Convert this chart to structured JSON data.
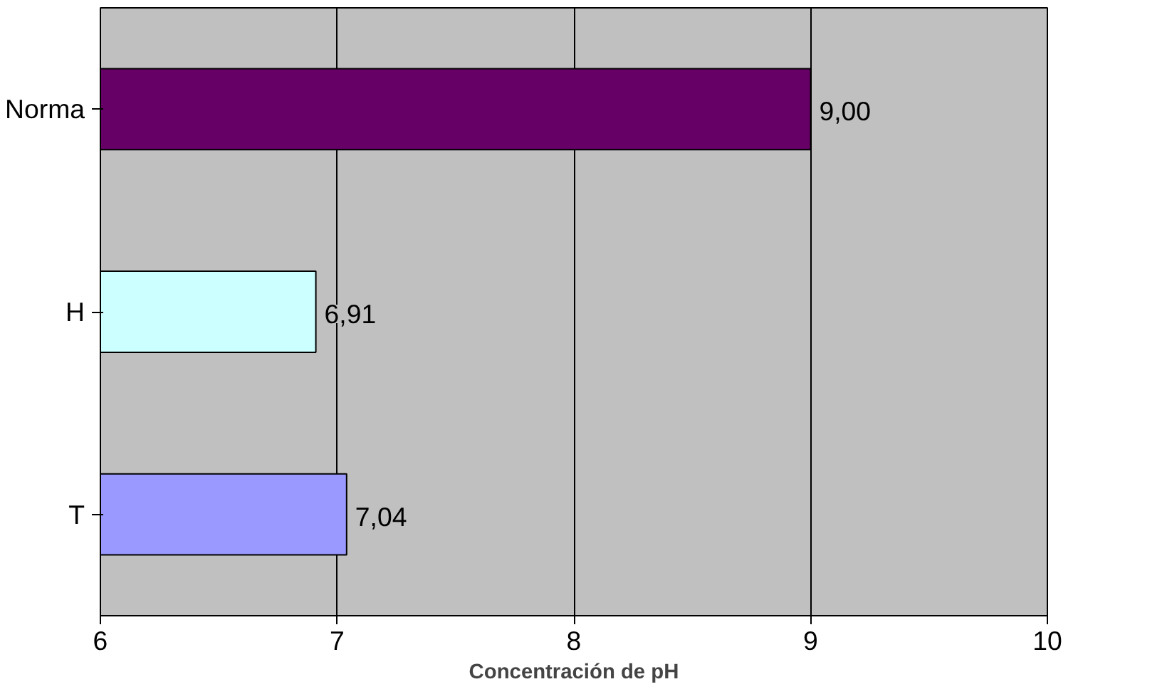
{
  "chart_data": {
    "type": "bar",
    "orientation": "horizontal",
    "xlabel": "Concentración de pH",
    "categories": [
      "Norma",
      "H",
      "T"
    ],
    "values": [
      9.0,
      6.91,
      7.04
    ],
    "colors": [
      "#660066",
      "#ccffff",
      "#9999ff"
    ],
    "value_labels": [
      "9,00",
      "6,91",
      "7,04"
    ],
    "xlim": [
      6,
      10
    ],
    "xticks": [
      6,
      7,
      8,
      9,
      10
    ],
    "grid": "x"
  }
}
